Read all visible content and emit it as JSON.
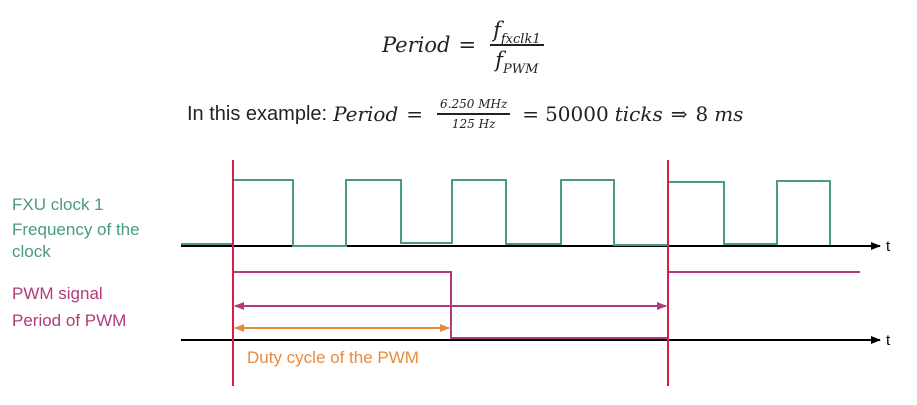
{
  "formula": {
    "lhs": "Period",
    "equals": "=",
    "num_base": "f",
    "num_sub": "fxclk1",
    "den_base": "f",
    "den_sub": "PWM"
  },
  "example": {
    "prefix": "In this example:",
    "lhs": "Period",
    "equals1": "=",
    "num": "6.250 MHz",
    "den": "125 Hz",
    "equals2": "=",
    "ticks_value": "50000",
    "ticks_unit": "ticks",
    "implies": "⇒",
    "ms_value": "8",
    "ms_unit": "ms"
  },
  "labels": {
    "fxu_clock": "FXU clock 1",
    "freq_line1": "Frequency of the",
    "freq_line2": "clock",
    "pwm_signal": "PWM signal",
    "period_pwm": "Period of PWM",
    "duty_cycle": "Duty cycle of the PWM"
  },
  "axis": {
    "clock_axis_label": "t",
    "pwm_axis_label": "t"
  },
  "colors": {
    "clock": "#4a9a85",
    "pwm": "#b03a7a",
    "marker": "#d6204a",
    "duty": "#e88a3c",
    "axis": "#000000"
  }
}
